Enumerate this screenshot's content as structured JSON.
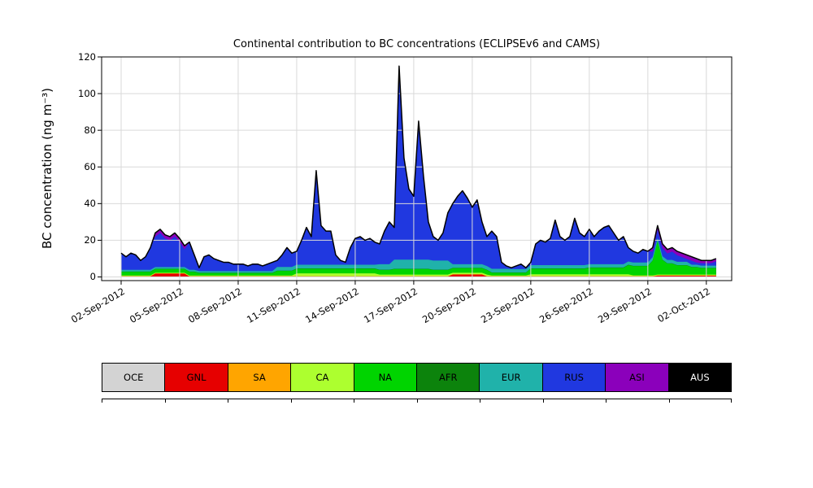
{
  "chart_data": {
    "type": "area",
    "stacked": true,
    "title": "Continental contribution to BC concentrations (ECLIPSEv6 and CAMS)",
    "ylabel": "BC concentration (ng m⁻³)",
    "xlabel": "",
    "ylim": [
      -2,
      120
    ],
    "y_ticks": [
      0,
      20,
      40,
      60,
      80,
      100,
      120
    ],
    "x_tick_labels": [
      "02-Sep-2012",
      "05-Sep-2012",
      "08-Sep-2012",
      "11-Sep-2012",
      "14-Sep-2012",
      "17-Sep-2012",
      "20-Sep-2012",
      "23-Sep-2012",
      "26-Sep-2012",
      "29-Sep-2012",
      "02-Oct-2012"
    ],
    "x_tick_days": [
      0,
      3,
      6,
      9,
      12,
      15,
      18,
      21,
      24,
      27,
      30
    ],
    "xlim_days": [
      -1,
      31.3
    ],
    "x_start_day": 0,
    "x_step_days": 0.25,
    "x_unit": "days since 02-Sep-2012",
    "grid_on": true,
    "grid_color": "#d9d9d9",
    "outline_color": "#000000",
    "frame_color": "#000000",
    "series": [
      {
        "name": "OCE",
        "color": "#d3d3d3",
        "label_color": "#000000",
        "runs": [
          [
            123,
            0.3
          ]
        ]
      },
      {
        "name": "GNL",
        "color": "#e60000",
        "label_color": "#000000",
        "runs": [
          [
            7,
            0
          ],
          [
            7,
            1.5
          ],
          [
            54,
            0
          ],
          [
            7,
            1
          ],
          [
            35,
            0
          ],
          [
            13,
            0.4
          ]
        ]
      },
      {
        "name": "SA",
        "color": "#ffa500",
        "label_color": "#000000",
        "runs": [
          [
            123,
            0.15
          ]
        ]
      },
      {
        "name": "CA",
        "color": "#adff2f",
        "label_color": "#000000",
        "runs": [
          [
            36,
            0.3
          ],
          [
            17,
            1.5
          ],
          [
            23,
            0.8
          ],
          [
            8,
            0.3
          ],
          [
            21,
            1.0
          ],
          [
            18,
            0.4
          ]
        ]
      },
      {
        "name": "NA",
        "color": "#00d400",
        "label_color": "#000000",
        "runs": [
          [
            16,
            2
          ],
          [
            16,
            1.3
          ],
          [
            24,
            2.5
          ],
          [
            8,
            3
          ],
          [
            12,
            2.5
          ],
          [
            8,
            1.5
          ],
          [
            12,
            3
          ],
          [
            8,
            3.5
          ],
          [
            5,
            5
          ],
          [
            1,
            8
          ],
          [
            1,
            18
          ],
          [
            1,
            8
          ],
          [
            2,
            6
          ],
          [
            3,
            5
          ],
          [
            2,
            4
          ],
          [
            4,
            3.5
          ]
        ]
      },
      {
        "name": "AFR",
        "color": "#0c830c",
        "label_color": "#000000",
        "runs": [
          [
            123,
            0.2
          ]
        ]
      },
      {
        "name": "EUR",
        "color": "#20b2aa",
        "label_color": "#000000",
        "runs": [
          [
            32,
            0.9
          ],
          [
            21,
            2
          ],
          [
            3,
            3
          ],
          [
            12,
            5
          ],
          [
            12,
            2
          ],
          [
            37,
            1.8
          ],
          [
            6,
            1.2
          ]
        ]
      },
      {
        "name": "RUS",
        "color": "#2038e0",
        "label_color": "#000000",
        "values": [
          9.15,
          7.15,
          9.15,
          8.15,
          5.15,
          7.15,
          12.15,
          16.65,
          18.65,
          15.65,
          14.65,
          16.65,
          13.65,
          9.65,
          15.15,
          8.15,
          1.85,
          7.85,
          8.85,
          6.85,
          5.85,
          4.85,
          4.85,
          3.85,
          3.85,
          3.85,
          2.85,
          3.85,
          3.85,
          2.85,
          3.85,
          4.85,
          3.55,
          6.55,
          10.55,
          7.55,
          7.35,
          13.35,
          20.35,
          15.35,
          51.35,
          21.35,
          18.35,
          18.35,
          5.35,
          2.35,
          1.35,
          9.35,
          14.35,
          15.35,
          13.35,
          14.35,
          12.35,
          11.05,
          18.05,
          23.05,
          17.05,
          105.05,
          55.05,
          38.05,
          34.05,
          75.05,
          45.05,
          20.05,
          13.05,
          11.05,
          15.05,
          26.05,
          33.05,
          37.05,
          40.05,
          36.05,
          31.05,
          35.05,
          23.05,
          16.05,
          20.55,
          17.55,
          3.55,
          1.55,
          0.75,
          1.75,
          2.75,
          0.75,
          1.55,
          11.55,
          13.55,
          12.55,
          14.55,
          24.55,
          15.55,
          13.55,
          15.55,
          25.55,
          17.55,
          15.55,
          19.05,
          15.05,
          18.05,
          20.05,
          21.05,
          17.05,
          13.05,
          15.05,
          7.55,
          6.15,
          5.15,
          7.15,
          6.15,
          2.95,
          4.55,
          4.55,
          3.55,
          4.55,
          3.55,
          2.55,
          1.55,
          2.15,
          1.15,
          1.35,
          1.35,
          1.35,
          2.35
        ]
      },
      {
        "name": "ASI",
        "color": "#8b00bb",
        "label_color": "#000000",
        "runs": [
          [
            7,
            0
          ],
          [
            7,
            2
          ],
          [
            42,
            0
          ],
          [
            8,
            0.5
          ],
          [
            45,
            0
          ],
          [
            10,
            2.2
          ],
          [
            4,
            1.5
          ]
        ]
      },
      {
        "name": "AUS",
        "color": "#000000",
        "label_color": "#ffffff",
        "runs": [
          [
            123,
            0
          ]
        ]
      }
    ]
  }
}
